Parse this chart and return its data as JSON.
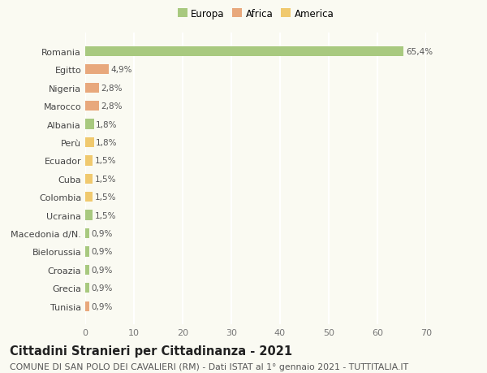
{
  "categories": [
    "Tunisia",
    "Grecia",
    "Croazia",
    "Bielorussia",
    "Macedonia d/N.",
    "Ucraina",
    "Colombia",
    "Cuba",
    "Ecuador",
    "Perù",
    "Albania",
    "Marocco",
    "Nigeria",
    "Egitto",
    "Romania"
  ],
  "values": [
    0.9,
    0.9,
    0.9,
    0.9,
    0.9,
    1.5,
    1.5,
    1.5,
    1.5,
    1.8,
    1.8,
    2.8,
    2.8,
    4.9,
    65.4
  ],
  "labels": [
    "0,9%",
    "0,9%",
    "0,9%",
    "0,9%",
    "0,9%",
    "1,5%",
    "1,5%",
    "1,5%",
    "1,5%",
    "1,8%",
    "1,8%",
    "2,8%",
    "2,8%",
    "4,9%",
    "65,4%"
  ],
  "continent": [
    "Africa",
    "Europa",
    "Europa",
    "Europa",
    "Europa",
    "Europa",
    "America",
    "America",
    "America",
    "America",
    "Europa",
    "Africa",
    "Africa",
    "Africa",
    "Europa"
  ],
  "colors": {
    "Europa": "#a8c97f",
    "Africa": "#e8a87c",
    "America": "#f0c96e"
  },
  "legend": [
    "Europa",
    "Africa",
    "America"
  ],
  "legend_colors": [
    "#a8c97f",
    "#e8a87c",
    "#f0c96e"
  ],
  "xlim": [
    0,
    70
  ],
  "xticks": [
    0,
    10,
    20,
    30,
    40,
    50,
    60,
    70
  ],
  "title": "Cittadini Stranieri per Cittadinanza - 2021",
  "subtitle": "COMUNE DI SAN POLO DEI CAVALIERI (RM) - Dati ISTAT al 1° gennaio 2021 - TUTTITALIA.IT",
  "background_color": "#fafaf2",
  "grid_color": "#ffffff",
  "bar_height": 0.55,
  "label_fontsize": 7.5,
  "ylabel_fontsize": 8.0,
  "xlabel_fontsize": 8.0,
  "title_fontsize": 10.5,
  "subtitle_fontsize": 7.8,
  "legend_fontsize": 8.5
}
